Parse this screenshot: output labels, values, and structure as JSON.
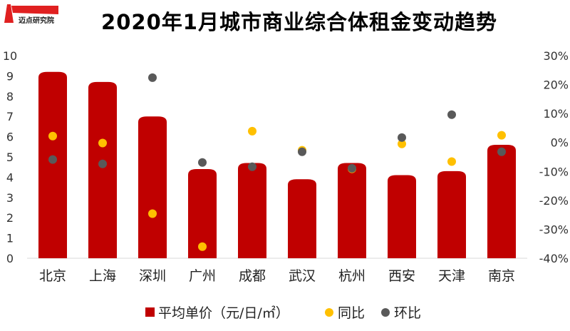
{
  "title": "2020年1月城市商业综合体租金变动趋势",
  "logo_text": "迈点研究院",
  "chart_data": {
    "type": "bar",
    "title": "2020年1月城市商业综合体租金变动趋势",
    "categories": [
      "北京",
      "上海",
      "深圳",
      "广州",
      "成都",
      "武汉",
      "杭州",
      "西安",
      "天津",
      "南京"
    ],
    "series": [
      {
        "name": "平均单价（元/日/㎡）",
        "type": "bar",
        "axis": "left",
        "color": "#C00000",
        "values": [
          9.2,
          8.7,
          7.0,
          4.4,
          4.7,
          3.9,
          4.7,
          4.1,
          4.3,
          5.6
        ]
      },
      {
        "name": "同比",
        "type": "scatter",
        "axis": "right",
        "color": "#FFC000",
        "values": [
          2.2,
          -0.2,
          -24.6,
          -36.0,
          3.9,
          -2.7,
          -9.1,
          -0.5,
          -6.6,
          2.5
        ]
      },
      {
        "name": "环比",
        "type": "scatter",
        "axis": "right",
        "color": "#595959",
        "values": [
          -5.9,
          -7.4,
          22.4,
          -6.9,
          -8.4,
          -3.2,
          -8.9,
          1.7,
          9.6,
          -3.2
        ]
      }
    ],
    "ylim": [
      0,
      10
    ],
    "yticks": [
      "0",
      "1",
      "2",
      "3",
      "4",
      "5",
      "6",
      "7",
      "8",
      "9",
      "10"
    ],
    "y2lim": [
      -40,
      30
    ],
    "y2ticks": [
      "-40%",
      "-30%",
      "-20%",
      "-10%",
      "0%",
      "10%",
      "20%",
      "30%"
    ],
    "legend_position": "bottom",
    "grid": false
  }
}
